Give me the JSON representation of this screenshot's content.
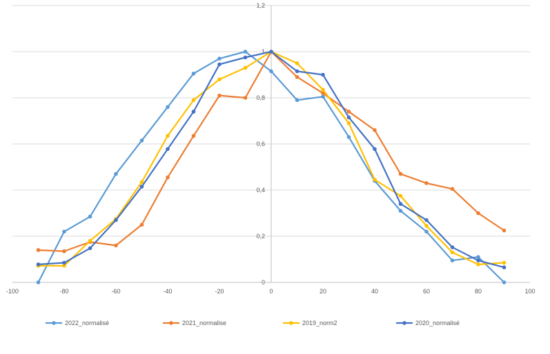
{
  "chart_data": {
    "type": "line",
    "xlim": [
      -100,
      100
    ],
    "ylim": [
      0,
      1.2
    ],
    "x_ticks": [
      "-100",
      "-80",
      "-60",
      "-40",
      "-20",
      "0",
      "20",
      "40",
      "60",
      "80",
      "100"
    ],
    "y_ticks": [
      "0",
      "0,2",
      "0,4",
      "0,6",
      "0,8",
      "1",
      "1,2"
    ],
    "grid": "horizontal",
    "legend_position": "bottom",
    "x": [
      -90,
      -80,
      -70,
      -60,
      -50,
      -40,
      -30,
      -20,
      -10,
      0,
      10,
      20,
      30,
      40,
      50,
      60,
      70,
      80,
      90
    ],
    "series": [
      {
        "name": "2022_normalisé",
        "color": "#5B9BD5",
        "values": [
          0.0,
          0.22,
          0.285,
          0.47,
          0.615,
          0.76,
          0.905,
          0.97,
          1.0,
          0.915,
          0.79,
          0.805,
          0.63,
          0.44,
          0.31,
          0.22,
          0.095,
          0.11,
          0.0
        ]
      },
      {
        "name": "2021_normalise",
        "color": "#ED7D31",
        "values": [
          0.14,
          0.135,
          0.175,
          0.16,
          0.25,
          0.455,
          0.635,
          0.81,
          0.8,
          1.0,
          0.89,
          0.82,
          0.74,
          0.66,
          0.47,
          0.43,
          0.405,
          0.3,
          0.225
        ]
      },
      {
        "name": "2019_norm2",
        "color": "#FFC000",
        "values": [
          0.072,
          0.072,
          0.18,
          0.275,
          0.435,
          0.635,
          0.79,
          0.88,
          0.93,
          1.0,
          0.95,
          0.835,
          0.69,
          0.445,
          0.375,
          0.245,
          0.13,
          0.078,
          0.085
        ]
      },
      {
        "name": "2020_normalisé",
        "color": "#4472C4",
        "values": [
          0.078,
          0.085,
          0.148,
          0.27,
          0.415,
          0.578,
          0.74,
          0.945,
          0.975,
          1.0,
          0.915,
          0.9,
          0.715,
          0.578,
          0.34,
          0.27,
          0.152,
          0.095,
          0.065
        ]
      }
    ]
  }
}
